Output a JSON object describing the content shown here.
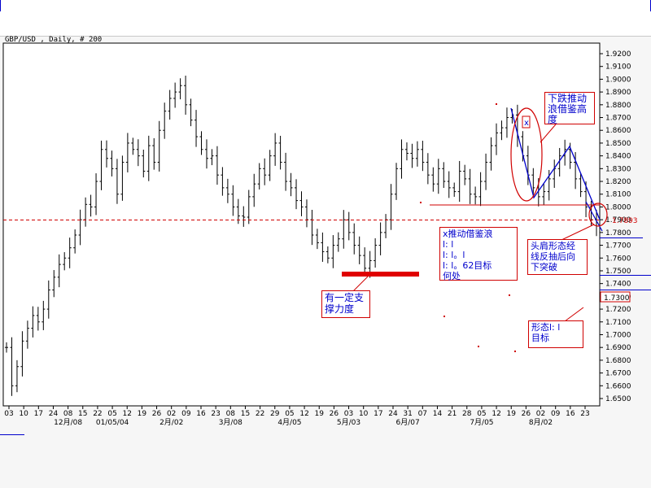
{
  "chart_data": {
    "type": "ohlc",
    "title": "GBP/USD , Daily, # 200",
    "ylim": [
      1.645,
      1.93
    ],
    "y_ticks": [
      "1.9200",
      "1.9100",
      "1.9000",
      "1.8900",
      "1.8800",
      "1.8700",
      "1.8600",
      "1.8500",
      "1.8400",
      "1.8300",
      "1.8200",
      "1.8100",
      "1.8000",
      "1.7900",
      "1.7800",
      "1.7700",
      "1.7600",
      "1.7500",
      "1.7400",
      "1.7300",
      "1.7200",
      "1.7100",
      "1.7000",
      "1.6900",
      "1.6800",
      "1.6700",
      "1.6600",
      "1.6500"
    ],
    "x_day_labels": [
      "03",
      "10",
      "17",
      "24",
      "08",
      "15",
      "22",
      "05",
      "12",
      "19",
      "26",
      "02",
      "09",
      "16",
      "23",
      "08",
      "15",
      "22",
      "29",
      "05",
      "12",
      "19",
      "26",
      "03",
      "10",
      "17",
      "24",
      "31",
      "07",
      "14",
      "21",
      "28",
      "05",
      "12",
      "19",
      "26",
      "02",
      "09",
      "16",
      "23"
    ],
    "x_month_labels": [
      "12月/08",
      "01/05/04",
      "2月/02",
      "3月/08",
      "4月/05",
      "5月/03",
      "6月/07",
      "7月/05",
      "8月/02"
    ],
    "closes": [
      1.69,
      1.66,
      1.675,
      1.695,
      1.705,
      1.715,
      1.71,
      1.72,
      1.735,
      1.745,
      1.755,
      1.76,
      1.768,
      1.778,
      1.79,
      1.802,
      1.8,
      1.82,
      1.845,
      1.838,
      1.83,
      1.81,
      1.835,
      1.85,
      1.845,
      1.84,
      1.828,
      1.848,
      1.835,
      1.86,
      1.875,
      1.885,
      1.89,
      1.895,
      1.88,
      1.868,
      1.855,
      1.845,
      1.838,
      1.84,
      1.825,
      1.815,
      1.81,
      1.8,
      1.793,
      1.792,
      1.808,
      1.818,
      1.83,
      1.825,
      1.84,
      1.85,
      1.835,
      1.82,
      1.815,
      1.805,
      1.8,
      1.79,
      1.778,
      1.772,
      1.765,
      1.76,
      1.77,
      1.775,
      1.79,
      1.78,
      1.77,
      1.762,
      1.752,
      1.758,
      1.77,
      1.78,
      1.79,
      1.81,
      1.83,
      1.845,
      1.842,
      1.838,
      1.845,
      1.835,
      1.825,
      1.818,
      1.83,
      1.82,
      1.815,
      1.812,
      1.828,
      1.822,
      1.81,
      1.808,
      1.82,
      1.835,
      1.848,
      1.858,
      1.862,
      1.87,
      1.872,
      1.855,
      1.84,
      1.825,
      1.815,
      1.808,
      1.812,
      1.822,
      1.83,
      1.84,
      1.845,
      1.835,
      1.822,
      1.812,
      1.8,
      1.79,
      1.785
    ],
    "price_marker": "1.7893",
    "price_marker_value": 1.7893,
    "target_marker": "1.7300",
    "target_marker_value": 1.73,
    "support_line_value": 1.8015,
    "neckline_value": 1.7893,
    "annotations": {
      "x_mark": "x",
      "box_xwave": "x推动借鉴浪\nl: l\nl: l。l\nl: l。62目标\n何处",
      "box_support": "有一定支\n撑力度",
      "box_copy_height": "下跌推动\n浪借鉴高\n度",
      "box_head_shoulders": "头肩形态经\n线反抽后向\n下突破",
      "box_target": "形态l: l\n目标"
    }
  }
}
